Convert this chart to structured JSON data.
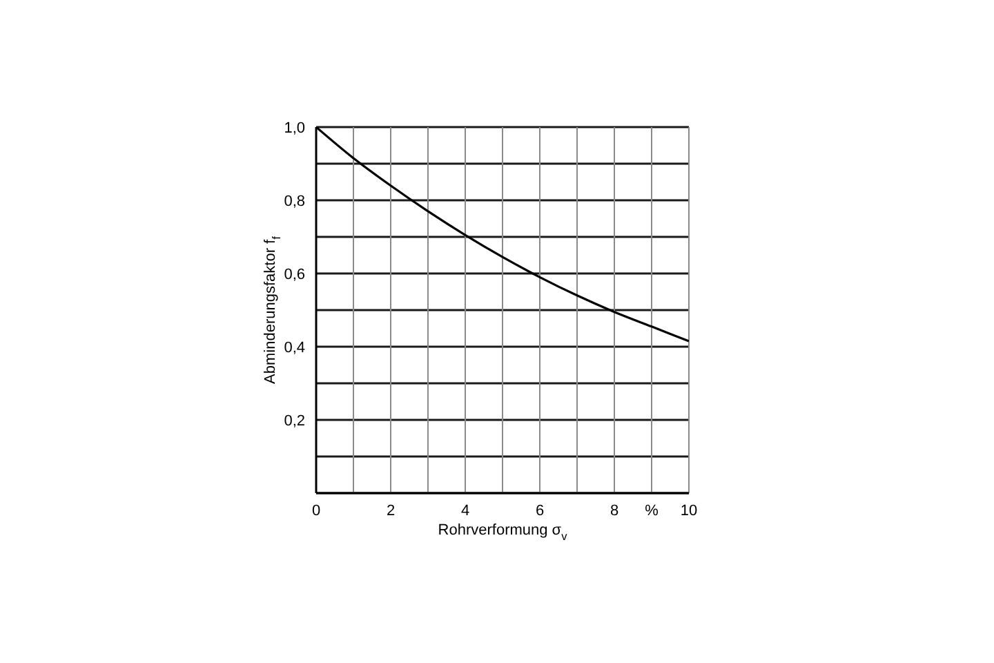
{
  "chart_data": {
    "type": "line",
    "xlabel": "Rohrverformung σ$_{v}$",
    "ylabel": "Abminderungsfaktor f$_{f}$",
    "x": [
      0,
      1,
      2,
      3,
      4,
      5,
      6,
      7,
      8,
      9,
      10
    ],
    "values": [
      1.0,
      0.915,
      0.84,
      0.77,
      0.705,
      0.645,
      0.59,
      0.54,
      0.495,
      0.455,
      0.415
    ],
    "color": "#000000",
    "xlim": [
      0,
      10
    ],
    "ylim": [
      0,
      1
    ],
    "xticks": [
      0,
      {
        "value": 1,
        "label": null
      },
      2,
      {
        "value": 3,
        "label": null
      },
      4,
      {
        "value": 5,
        "label": null
      },
      6,
      {
        "value": 7,
        "label": null
      },
      8,
      {
        "value": 9,
        "label": "%"
      },
      10
    ],
    "yticks": [
      {
        "value": 0,
        "label": null
      },
      {
        "value": 0.1,
        "label": null
      },
      {
        "value": 0.2,
        "label": "0,2"
      },
      {
        "value": 0.3,
        "label": null
      },
      {
        "value": 0.4,
        "label": "0,4"
      },
      {
        "value": 0.5,
        "label": null
      },
      {
        "value": 0.6,
        "label": "0,6"
      },
      {
        "value": 0.7,
        "label": null
      },
      {
        "value": 0.8,
        "label": "0,8"
      },
      {
        "value": 0.9,
        "label": null
      },
      {
        "value": 1.0,
        "label": "1,0"
      }
    ],
    "grid": true,
    "marker": "none"
  }
}
